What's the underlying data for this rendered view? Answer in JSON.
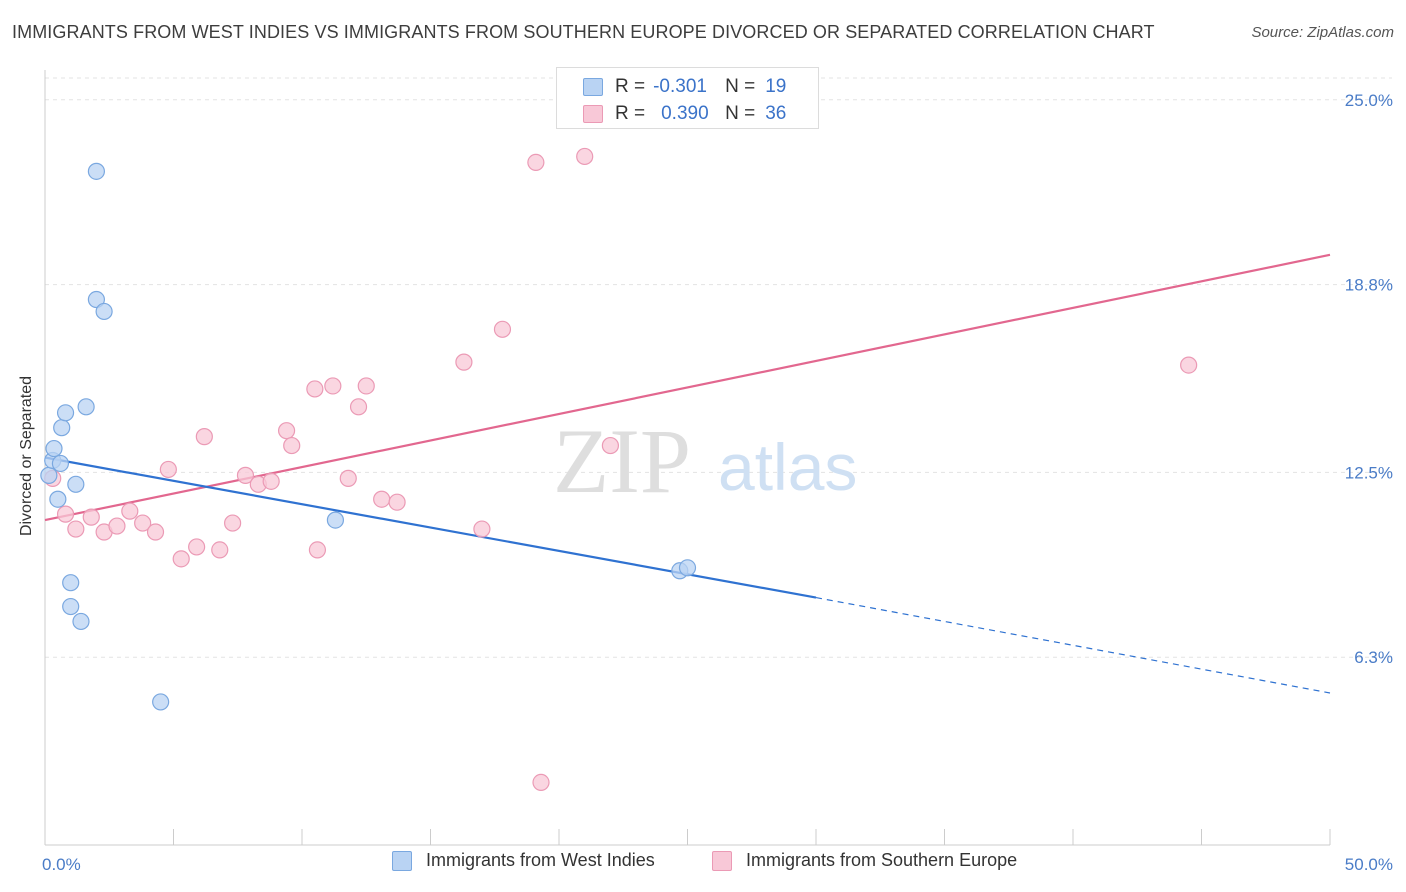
{
  "title": "IMMIGRANTS FROM WEST INDIES VS IMMIGRANTS FROM SOUTHERN EUROPE DIVORCED OR SEPARATED CORRELATION CHART",
  "source": "Source: ZipAtlas.com",
  "watermark": {
    "zip": "ZIP",
    "atlas": "atlas"
  },
  "legend": {
    "rows": [
      {
        "r_label": "R =",
        "r_value": "-0.301",
        "n_label": "N =",
        "n_value": "19"
      },
      {
        "r_label": "R =",
        "r_value": "0.390",
        "n_label": "N =",
        "n_value": "36"
      }
    ]
  },
  "colors": {
    "blue_fill": "#b9d3f3",
    "blue_stroke": "#7aa8e0",
    "blue_line": "#2f72d1",
    "pink_fill": "#f8c8d7",
    "pink_stroke": "#eb9ab5",
    "pink_line": "#e2678f",
    "tick_label": "#4a7cc7",
    "grid": "#e3e3e3"
  },
  "chart_data": {
    "type": "scatter",
    "title": "IMMIGRANTS FROM WEST INDIES VS IMMIGRANTS FROM SOUTHERN EUROPE DIVORCED OR SEPARATED CORRELATION CHART",
    "xlabel": "",
    "ylabel": "Divorced or Separated",
    "xlim": [
      0,
      50
    ],
    "ylim": [
      0,
      26
    ],
    "x_tick_labels": [
      "0.0%",
      "50.0%"
    ],
    "y_ticks": [
      6.3,
      12.5,
      18.8,
      25.0
    ],
    "y_tick_labels": [
      "6.3%",
      "12.5%",
      "18.8%",
      "25.0%"
    ],
    "grid": true,
    "legend_position": "top-center",
    "series": [
      {
        "name": "Immigrants from West Indies",
        "color": "#7aa8e0",
        "points": [
          [
            0.15,
            12.4
          ],
          [
            0.3,
            12.9
          ],
          [
            0.35,
            13.3
          ],
          [
            0.5,
            11.6
          ],
          [
            0.6,
            12.8
          ],
          [
            0.65,
            14.0
          ],
          [
            0.8,
            14.5
          ],
          [
            1.0,
            8.8
          ],
          [
            1.0,
            8.0
          ],
          [
            1.2,
            12.1
          ],
          [
            1.4,
            7.5
          ],
          [
            1.6,
            14.7
          ],
          [
            2.0,
            18.3
          ],
          [
            2.3,
            17.9
          ],
          [
            2.0,
            22.6
          ],
          [
            4.5,
            4.8
          ],
          [
            11.3,
            10.9
          ],
          [
            24.7,
            9.2
          ],
          [
            25.0,
            9.3
          ]
        ],
        "trend": {
          "x": [
            0,
            30
          ],
          "y": [
            13.0,
            8.3
          ]
        },
        "trend_dashed": {
          "x": [
            30,
            50
          ],
          "y": [
            8.3,
            5.1
          ]
        }
      },
      {
        "name": "Immigrants from Southern Europe",
        "color": "#eb9ab5",
        "points": [
          [
            0.3,
            12.3
          ],
          [
            0.8,
            11.1
          ],
          [
            1.2,
            10.6
          ],
          [
            1.8,
            11.0
          ],
          [
            2.3,
            10.5
          ],
          [
            2.8,
            10.7
          ],
          [
            3.3,
            11.2
          ],
          [
            3.8,
            10.8
          ],
          [
            4.3,
            10.5
          ],
          [
            4.8,
            12.6
          ],
          [
            5.3,
            9.6
          ],
          [
            5.9,
            10.0
          ],
          [
            6.2,
            13.7
          ],
          [
            6.8,
            9.9
          ],
          [
            7.3,
            10.8
          ],
          [
            7.8,
            12.4
          ],
          [
            8.3,
            12.1
          ],
          [
            8.8,
            12.2
          ],
          [
            9.4,
            13.9
          ],
          [
            9.6,
            13.4
          ],
          [
            10.5,
            15.3
          ],
          [
            10.6,
            9.9
          ],
          [
            11.2,
            15.4
          ],
          [
            11.8,
            12.3
          ],
          [
            12.2,
            14.7
          ],
          [
            12.5,
            15.4
          ],
          [
            13.1,
            11.6
          ],
          [
            13.7,
            11.5
          ],
          [
            16.3,
            16.2
          ],
          [
            17.0,
            10.6
          ],
          [
            17.8,
            17.3
          ],
          [
            19.1,
            22.9
          ],
          [
            19.3,
            2.1
          ],
          [
            21.0,
            23.1
          ],
          [
            22.0,
            13.4
          ],
          [
            44.5,
            16.1
          ]
        ],
        "trend": {
          "x": [
            0,
            50
          ],
          "y": [
            10.9,
            19.8
          ]
        }
      }
    ]
  }
}
